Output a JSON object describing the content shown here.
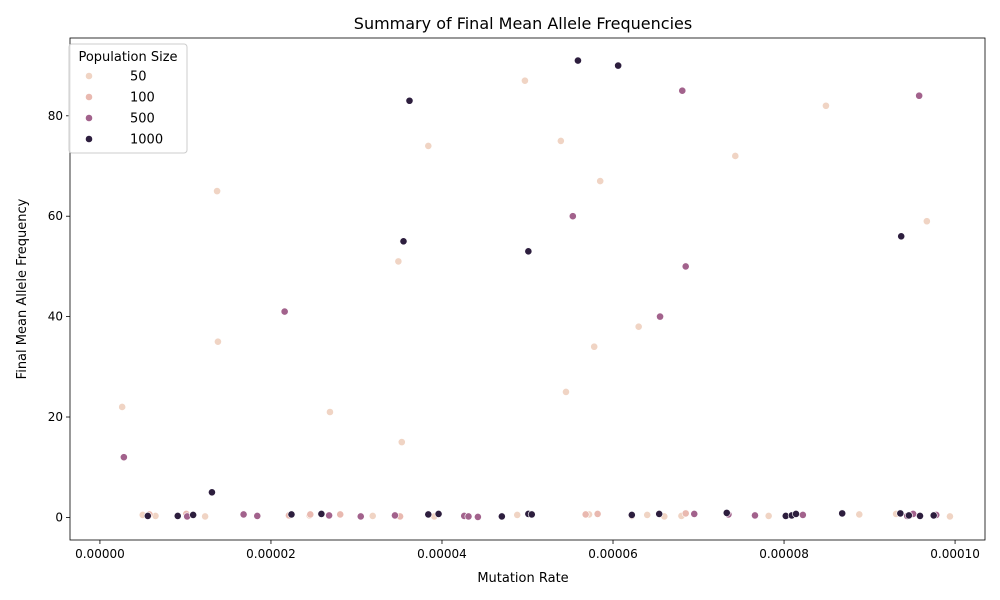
{
  "chart_data": {
    "type": "scatter",
    "title": "Summary of Final Mean Allele Frequencies",
    "xlabel": "Mutation Rate",
    "ylabel": "Final Mean Allele Frequency",
    "xlim": [
      -3.5e-06,
      0.0001035
    ],
    "ylim": [
      -4.5,
      95.5
    ],
    "xticks": [
      0,
      2e-05,
      4e-05,
      6e-05,
      8e-05,
      0.0001
    ],
    "xtick_labels": [
      "0.00000",
      "0.00002",
      "0.00004",
      "0.00006",
      "0.00008",
      "0.00010"
    ],
    "yticks": [
      0,
      20,
      40,
      60,
      80
    ],
    "ytick_labels": [
      "0",
      "20",
      "40",
      "60",
      "80"
    ],
    "grid": false,
    "legend": {
      "title": "Population Size",
      "placement": "upper-left",
      "entries": [
        "50",
        "100",
        "500",
        "1000"
      ]
    },
    "series": [
      {
        "name": "50",
        "color": "#f0d4c4",
        "x": [
          2.6e-06,
          1.37e-05,
          1.38e-05,
          2.69e-05,
          3.49e-05,
          3.53e-05,
          3.84e-05,
          4.97e-05,
          5.39e-05,
          5.45e-05,
          5.78e-05,
          5.85e-05,
          6.3e-05,
          7.43e-05,
          8.49e-05,
          9.67e-05,
          5e-06,
          6.5e-06,
          1.23e-05,
          2.45e-05,
          3.19e-05,
          3.91e-05,
          4.88e-05,
          5.72e-05,
          6.4e-05,
          6.6e-05,
          6.8e-05,
          7.82e-05,
          8.88e-05,
          9.31e-05,
          9.94e-05
        ],
        "y": [
          22,
          65,
          35,
          21,
          51,
          15,
          74,
          87,
          75,
          25,
          34,
          67,
          38,
          72,
          82,
          59,
          0.5,
          0.3,
          0.2,
          0.4,
          0.3,
          0.2,
          0.5,
          0.6,
          0.5,
          0.2,
          0.3,
          0.3,
          0.6,
          0.7,
          0.2
        ]
      },
      {
        "name": "100",
        "color": "#e9b9b0",
        "x": [
          5.8e-06,
          1.01e-05,
          2.21e-05,
          2.46e-05,
          2.81e-05,
          3.51e-05,
          5.68e-05,
          5.82e-05,
          6.22e-05,
          6.85e-05,
          6.95e-05
        ],
        "y": [
          0.6,
          0.7,
          0.4,
          0.6,
          0.6,
          0.2,
          0.6,
          0.7,
          0.3,
          0.8,
          0.7
        ]
      },
      {
        "name": "500",
        "color": "#a2628c",
        "x": [
          2.8e-06,
          2.16e-05,
          5.53e-05,
          6.55e-05,
          6.81e-05,
          6.85e-05,
          9.58e-05,
          1.02e-05,
          1.68e-05,
          1.84e-05,
          2.68e-05,
          3.05e-05,
          3.45e-05,
          4.26e-05,
          4.31e-05,
          4.42e-05,
          6.95e-05,
          7.35e-05,
          7.66e-05,
          8.22e-05,
          9.44e-05,
          9.51e-05,
          9.78e-05
        ],
        "y": [
          12,
          41,
          60,
          40,
          85,
          50,
          84,
          0.2,
          0.6,
          0.3,
          0.4,
          0.2,
          0.4,
          0.3,
          0.2,
          0.1,
          0.7,
          0.6,
          0.4,
          0.5,
          0.3,
          0.7,
          0.5
        ]
      },
      {
        "name": "1000",
        "color": "#2d1e3e",
        "x": [
          1.31e-05,
          3.55e-05,
          3.62e-05,
          5.01e-05,
          5.59e-05,
          6.06e-05,
          9.37e-05,
          5.6e-06,
          9.1e-06,
          1.09e-05,
          2.24e-05,
          2.59e-05,
          3.84e-05,
          3.96e-05,
          4.7e-05,
          5.01e-05,
          5.05e-05,
          6.22e-05,
          6.54e-05,
          7.33e-05,
          8.02e-05,
          8.09e-05,
          8.14e-05,
          8.68e-05,
          9.36e-05,
          9.46e-05,
          9.59e-05,
          9.75e-05
        ],
        "y": [
          5,
          55,
          83,
          53,
          91,
          90,
          56,
          0.3,
          0.3,
          0.5,
          0.6,
          0.7,
          0.6,
          0.7,
          0.2,
          0.7,
          0.6,
          0.5,
          0.7,
          0.9,
          0.3,
          0.4,
          0.7,
          0.8,
          0.8,
          0.4,
          0.3,
          0.4
        ]
      }
    ]
  }
}
